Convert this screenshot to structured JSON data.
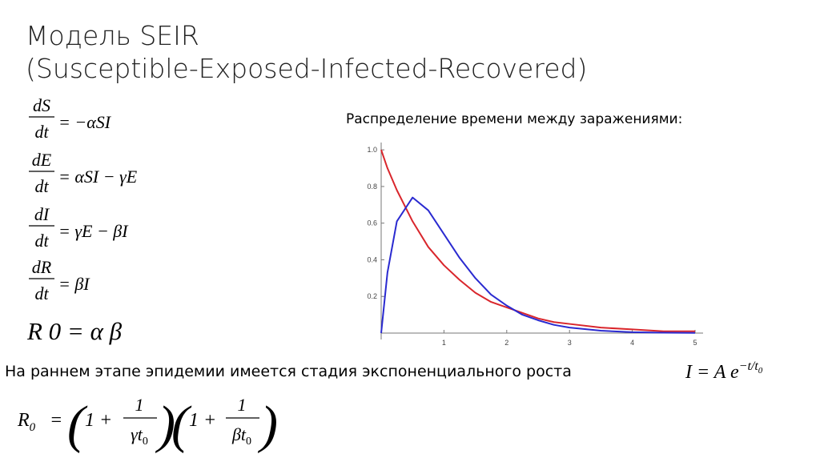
{
  "title": [
    "Модель SEIR",
    "(Susceptible-Exposed-Infected-Recovered)"
  ],
  "equations": [
    {
      "num": "dS",
      "den": "dt",
      "rhs": "= −αSI"
    },
    {
      "num": "dE",
      "den": "dt",
      "rhs": "= αSI − γE"
    },
    {
      "num": "dI",
      "den": "dt",
      "rhs": "= γE − βI"
    },
    {
      "num": "dR",
      "den": "dt",
      "rhs": "= βI"
    }
  ],
  "r0_def": "R 0 = α β",
  "note": "На раннем этапе эпидемии имеется стадия экспоненциального роста",
  "growth_formula": {
    "lhs": "I = A e",
    "exp": "−t/t",
    "exp_sub": "0"
  },
  "r0_formula": {
    "lhs": "R",
    "lhs_sub": "0",
    "eq": "=",
    "terms": [
      {
        "open": "(",
        "one": "1 +",
        "num": "1",
        "den": "γt",
        "den_sub": "0",
        "close": ")"
      },
      {
        "open": "(",
        "one": "1 +",
        "num": "1",
        "den": "βt",
        "den_sub": "0",
        "close": ")"
      }
    ]
  },
  "chart_data": {
    "type": "line",
    "title": "Распределение времени между заражениями:",
    "x": [
      0,
      0.1,
      0.25,
      0.5,
      0.75,
      1,
      1.25,
      1.5,
      1.75,
      2,
      2.25,
      2.5,
      2.75,
      3,
      3.5,
      4,
      4.5,
      5
    ],
    "series": [
      {
        "color": "#d9262c",
        "values": [
          1,
          0.9,
          0.78,
          0.61,
          0.47,
          0.37,
          0.29,
          0.22,
          0.17,
          0.14,
          0.11,
          0.08,
          0.06,
          0.05,
          0.03,
          0.02,
          0.01,
          0.01
        ]
      },
      {
        "color": "#2a2ad0",
        "values": [
          0,
          0.33,
          0.61,
          0.74,
          0.67,
          0.54,
          0.41,
          0.3,
          0.21,
          0.15,
          0.1,
          0.07,
          0.045,
          0.03,
          0.013,
          0.005,
          0.002,
          0.001
        ]
      }
    ],
    "xlim": [
      0,
      5
    ],
    "ylim": [
      0,
      1.04
    ],
    "xticks": [
      1,
      2,
      3,
      4,
      5
    ],
    "yticks": [
      0.2,
      0.4,
      0.6,
      0.8,
      {
        "value": 1,
        "label": "1.0"
      }
    ]
  }
}
